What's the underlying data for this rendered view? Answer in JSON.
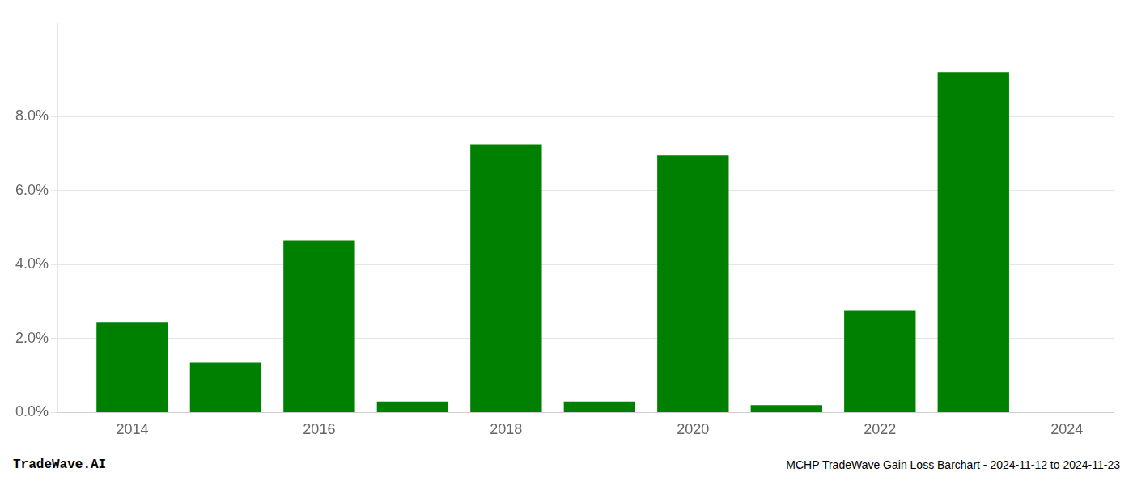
{
  "chart_data": {
    "type": "bar",
    "x": [
      2014,
      2015,
      2016,
      2017,
      2018,
      2019,
      2020,
      2021,
      2022,
      2023
    ],
    "values": [
      0.0245,
      0.0135,
      0.0465,
      0.003,
      0.0725,
      0.003,
      0.0695,
      0.002,
      0.0275,
      0.092
    ],
    "color": "#008000",
    "xlim": [
      2013.2,
      2024.5
    ],
    "xticks": [
      2014,
      2016,
      2018,
      2020,
      2022,
      2024
    ],
    "ylim": [
      0.0,
      0.105
    ],
    "yticks": [
      {
        "value": 0.0,
        "label": "0.0%"
      },
      {
        "value": 0.02,
        "label": "2.0%"
      },
      {
        "value": 0.04,
        "label": "4.0%"
      },
      {
        "value": 0.06,
        "label": "6.0%"
      },
      {
        "value": 0.08,
        "label": "8.0%"
      }
    ],
    "grid": true,
    "annotations": [
      "TradeWave.AI",
      "MCHP TradeWave Gain Loss Barchart - 2024-11-12 to 2024-11-23"
    ]
  }
}
